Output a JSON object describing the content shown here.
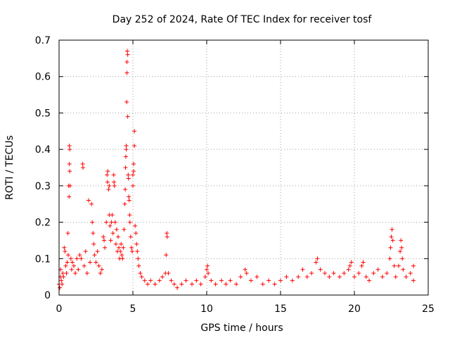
{
  "chart_data": {
    "type": "scatter",
    "title": "Day 252 of 2024, Rate Of TEC Index for receiver tosf",
    "xlabel": "GPS time / hours",
    "ylabel": "ROTI / TECUs",
    "xlim": [
      0,
      25
    ],
    "ylim": [
      0,
      0.7
    ],
    "xticks": [
      0,
      5,
      10,
      15,
      20,
      25
    ],
    "xtick_labels": [
      "0",
      "5",
      "10",
      "15",
      "20",
      "25"
    ],
    "yticks": [
      0,
      0.1,
      0.2,
      0.3,
      0.4,
      0.5,
      0.6,
      0.7
    ],
    "ytick_labels": [
      "0",
      "0.1",
      "0.2",
      "0.3",
      "0.4",
      "0.5",
      "0.6",
      "0.7"
    ],
    "grid": true,
    "marker": "+",
    "color": "#ff0000",
    "series": [
      {
        "name": "ROTI",
        "points": [
          [
            0.0,
            0.03
          ],
          [
            0.05,
            0.02
          ],
          [
            0.1,
            0.05
          ],
          [
            0.1,
            0.07
          ],
          [
            0.15,
            0.04
          ],
          [
            0.2,
            0.03
          ],
          [
            0.25,
            0.06
          ],
          [
            0.3,
            0.05
          ],
          [
            0.35,
            0.13
          ],
          [
            0.4,
            0.12
          ],
          [
            0.45,
            0.08
          ],
          [
            0.5,
            0.06
          ],
          [
            0.55,
            0.09
          ],
          [
            0.6,
            0.17
          ],
          [
            0.62,
            0.11
          ],
          [
            0.65,
            0.3
          ],
          [
            0.68,
            0.27
          ],
          [
            0.7,
            0.36
          ],
          [
            0.72,
            0.34
          ],
          [
            0.7,
            0.41
          ],
          [
            0.72,
            0.4
          ],
          [
            0.75,
            0.3
          ],
          [
            0.8,
            0.1
          ],
          [
            0.85,
            0.07
          ],
          [
            0.9,
            0.09
          ],
          [
            1.0,
            0.08
          ],
          [
            1.1,
            0.06
          ],
          [
            1.2,
            0.1
          ],
          [
            1.3,
            0.07
          ],
          [
            1.4,
            0.11
          ],
          [
            1.5,
            0.1
          ],
          [
            1.6,
            0.36
          ],
          [
            1.62,
            0.35
          ],
          [
            1.7,
            0.08
          ],
          [
            1.8,
            0.12
          ],
          [
            1.9,
            0.06
          ],
          [
            2.0,
            0.26
          ],
          [
            2.1,
            0.09
          ],
          [
            2.2,
            0.25
          ],
          [
            2.25,
            0.2
          ],
          [
            2.3,
            0.17
          ],
          [
            2.35,
            0.14
          ],
          [
            2.4,
            0.11
          ],
          [
            2.5,
            0.09
          ],
          [
            2.6,
            0.12
          ],
          [
            2.7,
            0.08
          ],
          [
            2.8,
            0.06
          ],
          [
            2.9,
            0.07
          ],
          [
            3.0,
            0.16
          ],
          [
            3.05,
            0.15
          ],
          [
            3.1,
            0.13
          ],
          [
            3.2,
            0.2
          ],
          [
            3.25,
            0.33
          ],
          [
            3.28,
            0.31
          ],
          [
            3.3,
            0.34
          ],
          [
            3.35,
            0.29
          ],
          [
            3.4,
            0.3
          ],
          [
            3.4,
            0.22
          ],
          [
            3.45,
            0.19
          ],
          [
            3.5,
            0.15
          ],
          [
            3.55,
            0.2
          ],
          [
            3.6,
            0.22
          ],
          [
            3.65,
            0.17
          ],
          [
            3.7,
            0.33
          ],
          [
            3.72,
            0.31
          ],
          [
            3.75,
            0.3
          ],
          [
            3.8,
            0.2
          ],
          [
            3.85,
            0.14
          ],
          [
            3.9,
            0.18
          ],
          [
            3.95,
            0.12
          ],
          [
            4.0,
            0.16
          ],
          [
            4.05,
            0.13
          ],
          [
            4.1,
            0.1
          ],
          [
            4.15,
            0.12
          ],
          [
            4.2,
            0.14
          ],
          [
            4.25,
            0.11
          ],
          [
            4.3,
            0.1
          ],
          [
            4.35,
            0.13
          ],
          [
            4.4,
            0.18
          ],
          [
            4.45,
            0.25
          ],
          [
            4.48,
            0.29
          ],
          [
            4.5,
            0.35
          ],
          [
            4.52,
            0.38
          ],
          [
            4.55,
            0.4
          ],
          [
            4.55,
            0.41
          ],
          [
            4.58,
            0.53
          ],
          [
            4.6,
            0.61
          ],
          [
            4.6,
            0.64
          ],
          [
            4.62,
            0.67
          ],
          [
            4.65,
            0.66
          ],
          [
            4.65,
            0.49
          ],
          [
            4.68,
            0.33
          ],
          [
            4.7,
            0.32
          ],
          [
            4.72,
            0.27
          ],
          [
            4.75,
            0.26
          ],
          [
            4.78,
            0.22
          ],
          [
            4.8,
            0.2
          ],
          [
            4.85,
            0.16
          ],
          [
            4.9,
            0.13
          ],
          [
            4.95,
            0.12
          ],
          [
            5.0,
            0.3
          ],
          [
            5.0,
            0.33
          ],
          [
            5.05,
            0.36
          ],
          [
            5.05,
            0.34
          ],
          [
            5.1,
            0.41
          ],
          [
            5.1,
            0.45
          ],
          [
            5.15,
            0.19
          ],
          [
            5.2,
            0.17
          ],
          [
            5.25,
            0.14
          ],
          [
            5.3,
            0.12
          ],
          [
            5.35,
            0.1
          ],
          [
            5.4,
            0.08
          ],
          [
            5.5,
            0.06
          ],
          [
            5.6,
            0.05
          ],
          [
            5.8,
            0.04
          ],
          [
            6.0,
            0.03
          ],
          [
            6.2,
            0.04
          ],
          [
            6.5,
            0.03
          ],
          [
            6.8,
            0.04
          ],
          [
            7.0,
            0.05
          ],
          [
            7.2,
            0.06
          ],
          [
            7.25,
            0.11
          ],
          [
            7.3,
            0.17
          ],
          [
            7.32,
            0.16
          ],
          [
            7.4,
            0.06
          ],
          [
            7.6,
            0.04
          ],
          [
            7.8,
            0.03
          ],
          [
            8.0,
            0.02
          ],
          [
            8.3,
            0.03
          ],
          [
            8.6,
            0.04
          ],
          [
            9.0,
            0.03
          ],
          [
            9.3,
            0.04
          ],
          [
            9.6,
            0.03
          ],
          [
            9.9,
            0.05
          ],
          [
            10.0,
            0.07
          ],
          [
            10.05,
            0.08
          ],
          [
            10.1,
            0.06
          ],
          [
            10.3,
            0.04
          ],
          [
            10.6,
            0.03
          ],
          [
            11.0,
            0.04
          ],
          [
            11.3,
            0.03
          ],
          [
            11.6,
            0.04
          ],
          [
            12.0,
            0.03
          ],
          [
            12.3,
            0.05
          ],
          [
            12.6,
            0.07
          ],
          [
            12.7,
            0.06
          ],
          [
            13.0,
            0.04
          ],
          [
            13.4,
            0.05
          ],
          [
            13.8,
            0.03
          ],
          [
            14.2,
            0.04
          ],
          [
            14.6,
            0.03
          ],
          [
            15.0,
            0.04
          ],
          [
            15.4,
            0.05
          ],
          [
            15.8,
            0.04
          ],
          [
            16.2,
            0.05
          ],
          [
            16.5,
            0.07
          ],
          [
            16.8,
            0.05
          ],
          [
            17.1,
            0.06
          ],
          [
            17.4,
            0.09
          ],
          [
            17.5,
            0.1
          ],
          [
            17.7,
            0.07
          ],
          [
            18.0,
            0.06
          ],
          [
            18.3,
            0.05
          ],
          [
            18.6,
            0.06
          ],
          [
            19.0,
            0.05
          ],
          [
            19.3,
            0.06
          ],
          [
            19.6,
            0.07
          ],
          [
            19.7,
            0.08
          ],
          [
            19.8,
            0.09
          ],
          [
            20.0,
            0.05
          ],
          [
            20.3,
            0.06
          ],
          [
            20.5,
            0.08
          ],
          [
            20.6,
            0.09
          ],
          [
            20.8,
            0.05
          ],
          [
            21.0,
            0.04
          ],
          [
            21.3,
            0.06
          ],
          [
            21.6,
            0.07
          ],
          [
            21.9,
            0.05
          ],
          [
            22.2,
            0.06
          ],
          [
            22.4,
            0.1
          ],
          [
            22.45,
            0.13
          ],
          [
            22.5,
            0.16
          ],
          [
            22.55,
            0.18
          ],
          [
            22.6,
            0.15
          ],
          [
            22.7,
            0.08
          ],
          [
            22.8,
            0.05
          ],
          [
            23.0,
            0.08
          ],
          [
            23.1,
            0.12
          ],
          [
            23.15,
            0.15
          ],
          [
            23.2,
            0.13
          ],
          [
            23.25,
            0.1
          ],
          [
            23.3,
            0.07
          ],
          [
            23.5,
            0.05
          ],
          [
            23.8,
            0.06
          ],
          [
            24.0,
            0.08
          ],
          [
            24.0,
            0.04
          ]
        ]
      }
    ]
  }
}
